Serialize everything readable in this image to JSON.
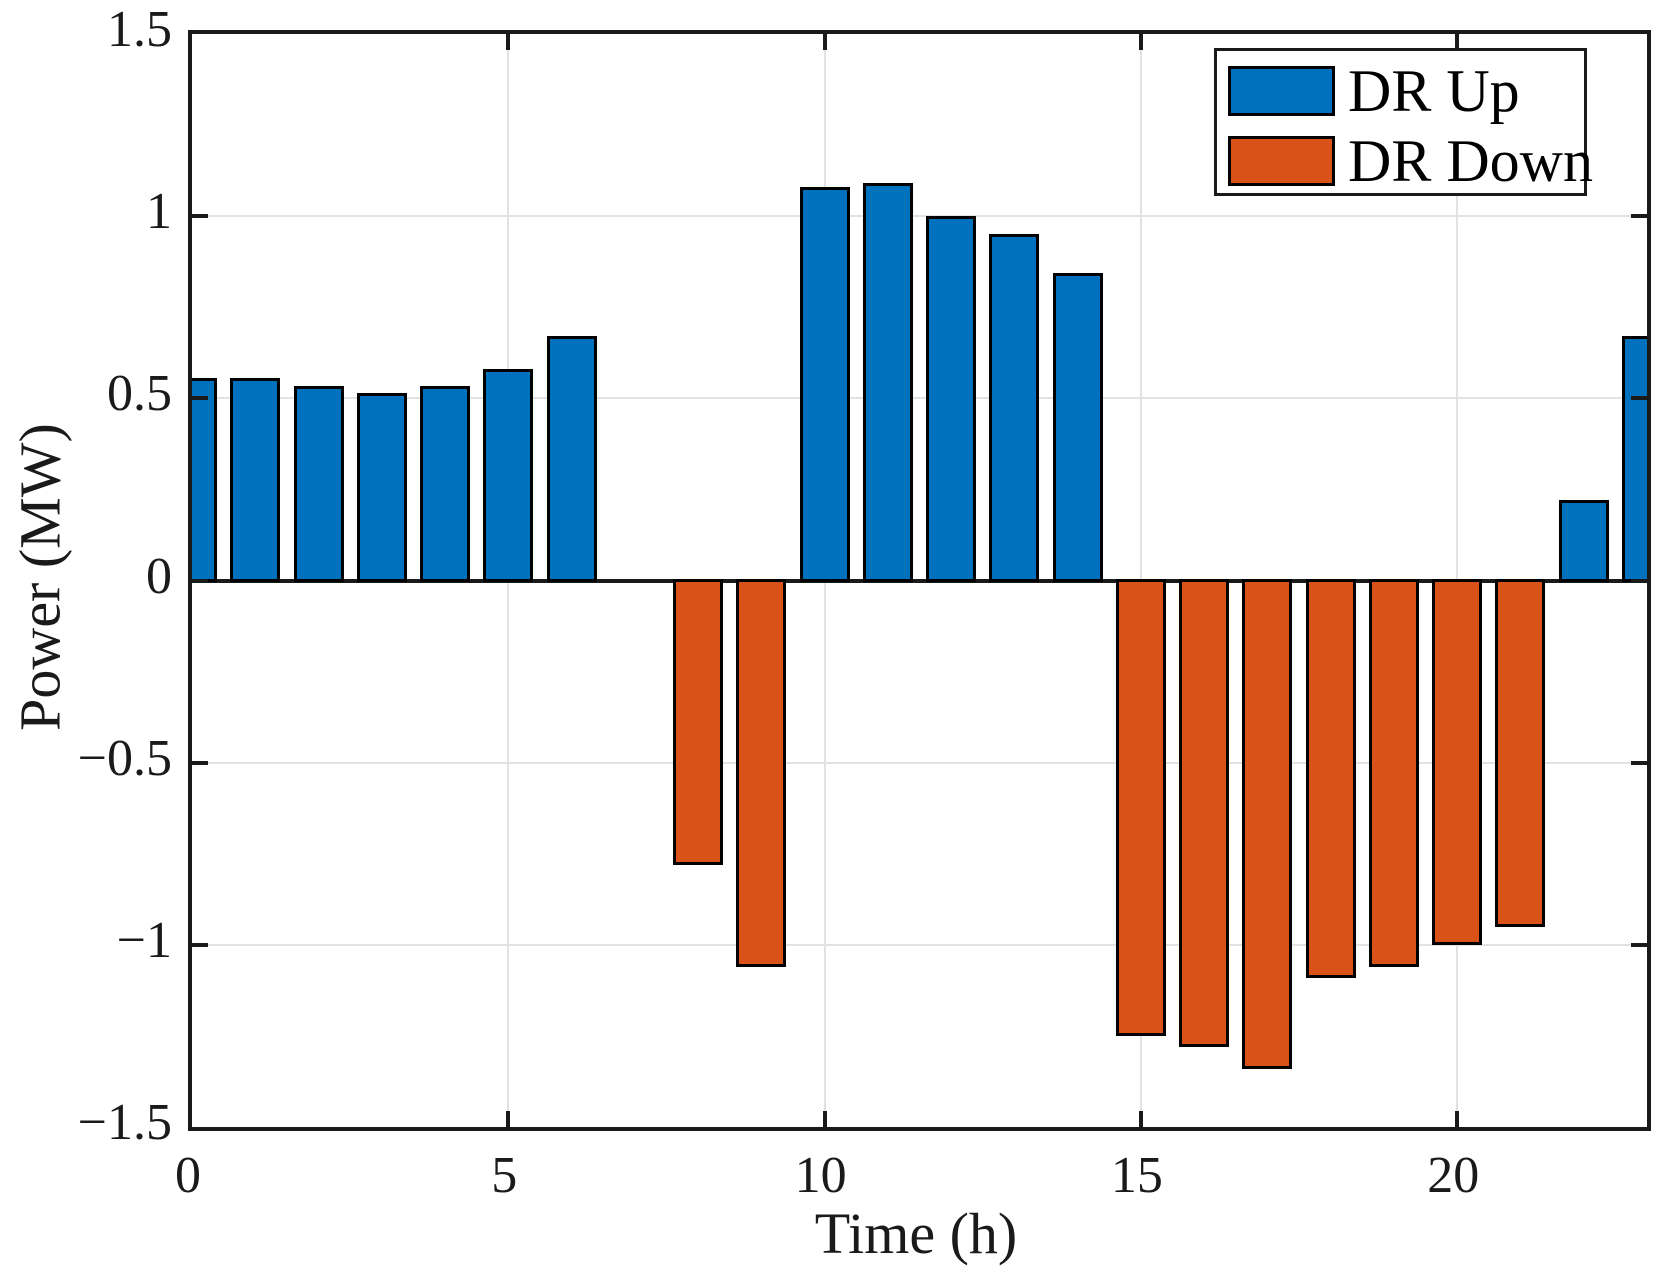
{
  "chart_data": {
    "type": "bar",
    "title": "",
    "xlabel": "Time (h)",
    "ylabel": "Power (MW)",
    "xlim": [
      0,
      23
    ],
    "ylim": [
      -1.5,
      1.5
    ],
    "xticks": [
      0,
      5,
      10,
      15,
      20
    ],
    "xtick_labels": [
      "0",
      "5",
      "10",
      "15",
      "20"
    ],
    "yticks": [
      1.5,
      1,
      0.5,
      0,
      -0.5,
      -1,
      -1.5
    ],
    "ytick_labels": [
      "1.5",
      "1",
      "0.5",
      "0",
      "−0.5",
      "−1",
      "−1.5"
    ],
    "grid": true,
    "legend_position": "top-right",
    "bar_edge_color": "#000000",
    "categories": [
      0,
      1,
      2,
      3,
      4,
      5,
      6,
      7,
      8,
      9,
      10,
      11,
      12,
      13,
      14,
      15,
      16,
      17,
      18,
      19,
      20,
      21,
      22,
      23
    ],
    "series": [
      {
        "name": "DR Up",
        "color": "#0072BD",
        "values": [
          0.555,
          0.555,
          0.535,
          0.515,
          0.535,
          0.58,
          0.67,
          0,
          0,
          0,
          1.08,
          1.09,
          1.0,
          0.95,
          0.845,
          0,
          0,
          0,
          0,
          0,
          0,
          0,
          0.22,
          0.67
        ]
      },
      {
        "name": "DR Down",
        "color": "#D95319",
        "values": [
          0,
          0,
          0,
          0,
          0,
          0,
          0,
          0,
          -0.78,
          -1.06,
          0,
          0,
          0,
          0,
          0,
          -1.25,
          -1.28,
          -1.34,
          -1.09,
          -1.06,
          -1.0,
          -0.95,
          0,
          0
        ]
      }
    ]
  }
}
